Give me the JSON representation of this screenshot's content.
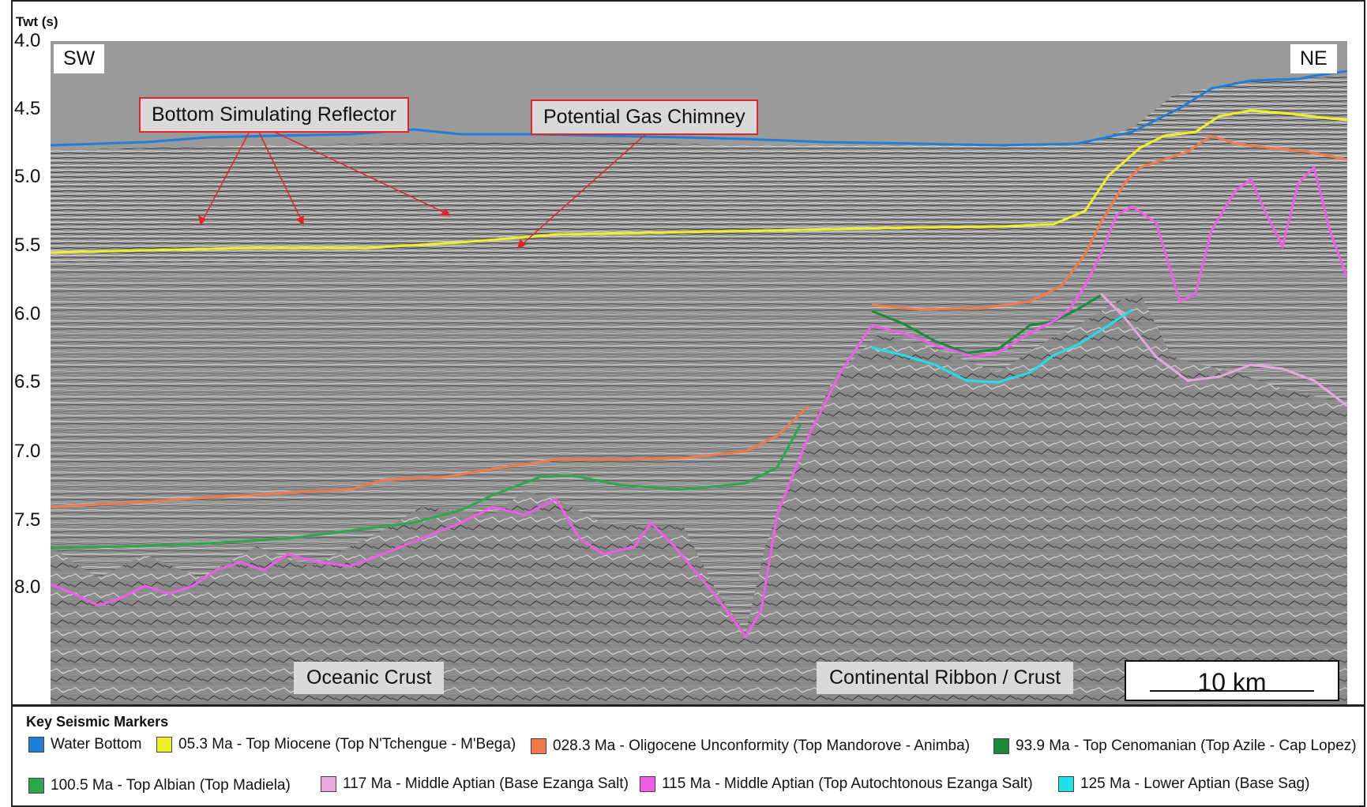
{
  "axis": {
    "label": "Twt (s)",
    "ticks": [
      "4.0",
      "4.5",
      "5.0",
      "5.5",
      "6.0",
      "6.5",
      "7.0",
      "7.5",
      "8.0"
    ]
  },
  "orientation": {
    "left": "SW",
    "right": "NE"
  },
  "callouts": {
    "bsr": "Bottom Simulating Reflector",
    "gas": "Potential Gas Chimney"
  },
  "regions": {
    "oceanic": "Oceanic Crust",
    "continental": "Continental Ribbon / Crust"
  },
  "scale_bar": "10 km",
  "legend": {
    "title": "Key Seismic Markers",
    "items": [
      {
        "label": "Water Bottom",
        "color": "#1f7ed8"
      },
      {
        "label": "05.3 Ma - Top Miocene (Top N'Tchengue - M'Bega)",
        "color": "#f2ee2a"
      },
      {
        "label": "028.3 Ma - Oligocene Unconformity (Top Mandorove - Animba)",
        "color": "#f07a4a"
      },
      {
        "label": "93.9 Ma - Top Cenomanian (Top Azile - Cap Lopez)",
        "color": "#1b8a3a"
      },
      {
        "label": "100.5 Ma - Top Albian (Top Madiela)",
        "color": "#2aa84a"
      },
      {
        "label": "117 Ma - Middle Aptian (Base Ezanga Salt)",
        "color": "#e9a6e0"
      },
      {
        "label": "115 Ma -  Middle Aptian (Top Autochtonous Ezanga Salt)",
        "color": "#f05de8"
      },
      {
        "label": "125 Ma - Lower Aptian (Base Sag)",
        "color": "#22e0e8"
      }
    ]
  }
}
